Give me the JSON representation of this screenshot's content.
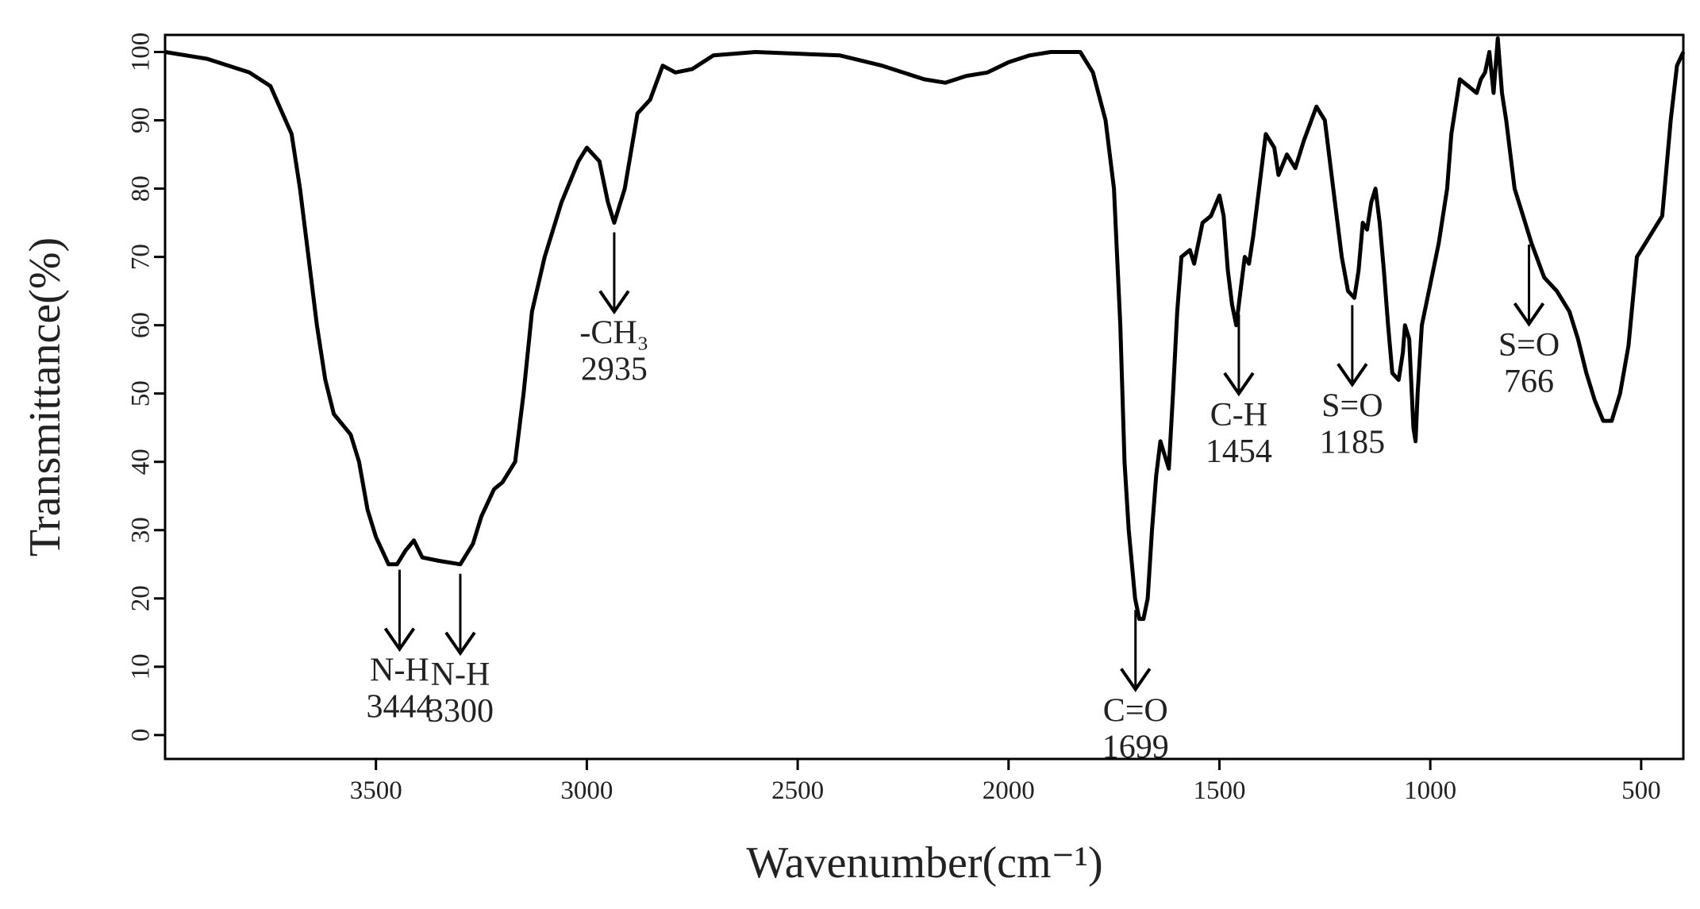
{
  "chart_data": {
    "type": "line",
    "xlabel": "Wavenumber(cm⁻¹)",
    "ylabel": "Transmittance(%)",
    "xlim": [
      4000,
      400
    ],
    "ylim": [
      -3.5,
      102.5
    ],
    "xticks": [
      3500,
      3000,
      2500,
      2000,
      1500,
      1000,
      500
    ],
    "yticks": [
      0,
      10,
      20,
      30,
      40,
      50,
      60,
      70,
      80,
      90,
      100
    ],
    "series": [
      {
        "color": "#000000",
        "x": [
          4000,
          3900,
          3800,
          3750,
          3700,
          3680,
          3660,
          3640,
          3620,
          3600,
          3560,
          3540,
          3520,
          3500,
          3470,
          3450,
          3430,
          3410,
          3390,
          3350,
          3300,
          3270,
          3250,
          3220,
          3200,
          3170,
          3150,
          3130,
          3100,
          3060,
          3020,
          3000,
          2970,
          2950,
          2935,
          2910,
          2880,
          2850,
          2820,
          2790,
          2750,
          2700,
          2600,
          2400,
          2300,
          2200,
          2150,
          2100,
          2050,
          2000,
          1950,
          1900,
          1830,
          1800,
          1770,
          1750,
          1735,
          1725,
          1715,
          1700,
          1690,
          1680,
          1670,
          1660,
          1650,
          1640,
          1620,
          1610,
          1600,
          1590,
          1570,
          1560,
          1540,
          1520,
          1500,
          1490,
          1480,
          1470,
          1460,
          1450,
          1440,
          1430,
          1420,
          1400,
          1390,
          1370,
          1360,
          1340,
          1320,
          1300,
          1270,
          1250,
          1230,
          1210,
          1195,
          1180,
          1170,
          1160,
          1150,
          1140,
          1130,
          1120,
          1110,
          1100,
          1090,
          1075,
          1065,
          1060,
          1050,
          1040,
          1035,
          1030,
          1020,
          1000,
          980,
          960,
          950,
          930,
          910,
          890,
          880,
          870,
          860,
          850,
          840,
          830,
          820,
          800,
          780,
          760,
          730,
          700,
          670,
          650,
          630,
          610,
          590,
          570,
          550,
          530,
          510,
          490,
          470,
          450,
          430,
          415,
          400
        ],
        "values": [
          100,
          99,
          97,
          95,
          88,
          80,
          70,
          60,
          52,
          47,
          44,
          40,
          33,
          29,
          25,
          25,
          27,
          28.5,
          26,
          25.5,
          25,
          28,
          32,
          36,
          37,
          40,
          50,
          62,
          70,
          78,
          84,
          86,
          84,
          78,
          75,
          80,
          91,
          93,
          98,
          97,
          97.5,
          99.5,
          100,
          99.5,
          98,
          96,
          95.5,
          96.5,
          97,
          98.5,
          99.5,
          100,
          100,
          97,
          90,
          80,
          60,
          40,
          30,
          20,
          17,
          17,
          20,
          30,
          38,
          43,
          39,
          50,
          62,
          70,
          71,
          69,
          75,
          76,
          79,
          76,
          68,
          63,
          60,
          65,
          70,
          69,
          73,
          83,
          88,
          86,
          82,
          85,
          83,
          87,
          92,
          90,
          80,
          70,
          65,
          64,
          68,
          75,
          74,
          78,
          80,
          75,
          68,
          60,
          53,
          52,
          56,
          60,
          58,
          45,
          43,
          50,
          60,
          66,
          72,
          80,
          88,
          96,
          95,
          94,
          96,
          97,
          100,
          94,
          102,
          94,
          90,
          80,
          76,
          72,
          67,
          65,
          62,
          58,
          53,
          49,
          46,
          46,
          50,
          57,
          70,
          72,
          74,
          76,
          90,
          98,
          100
        ]
      }
    ],
    "annotations": [
      {
        "label": "N-H",
        "wavenumber": 3444
      },
      {
        "label": "N-H",
        "wavenumber": 3300
      },
      {
        "label": "-CH₃",
        "wavenumber": 2935
      },
      {
        "label": "C=O",
        "wavenumber": 1699
      },
      {
        "label": "C-H",
        "wavenumber": 1454
      },
      {
        "label": "S=O",
        "wavenumber": 1185
      },
      {
        "label": "S=O",
        "wavenumber": 766
      }
    ]
  }
}
